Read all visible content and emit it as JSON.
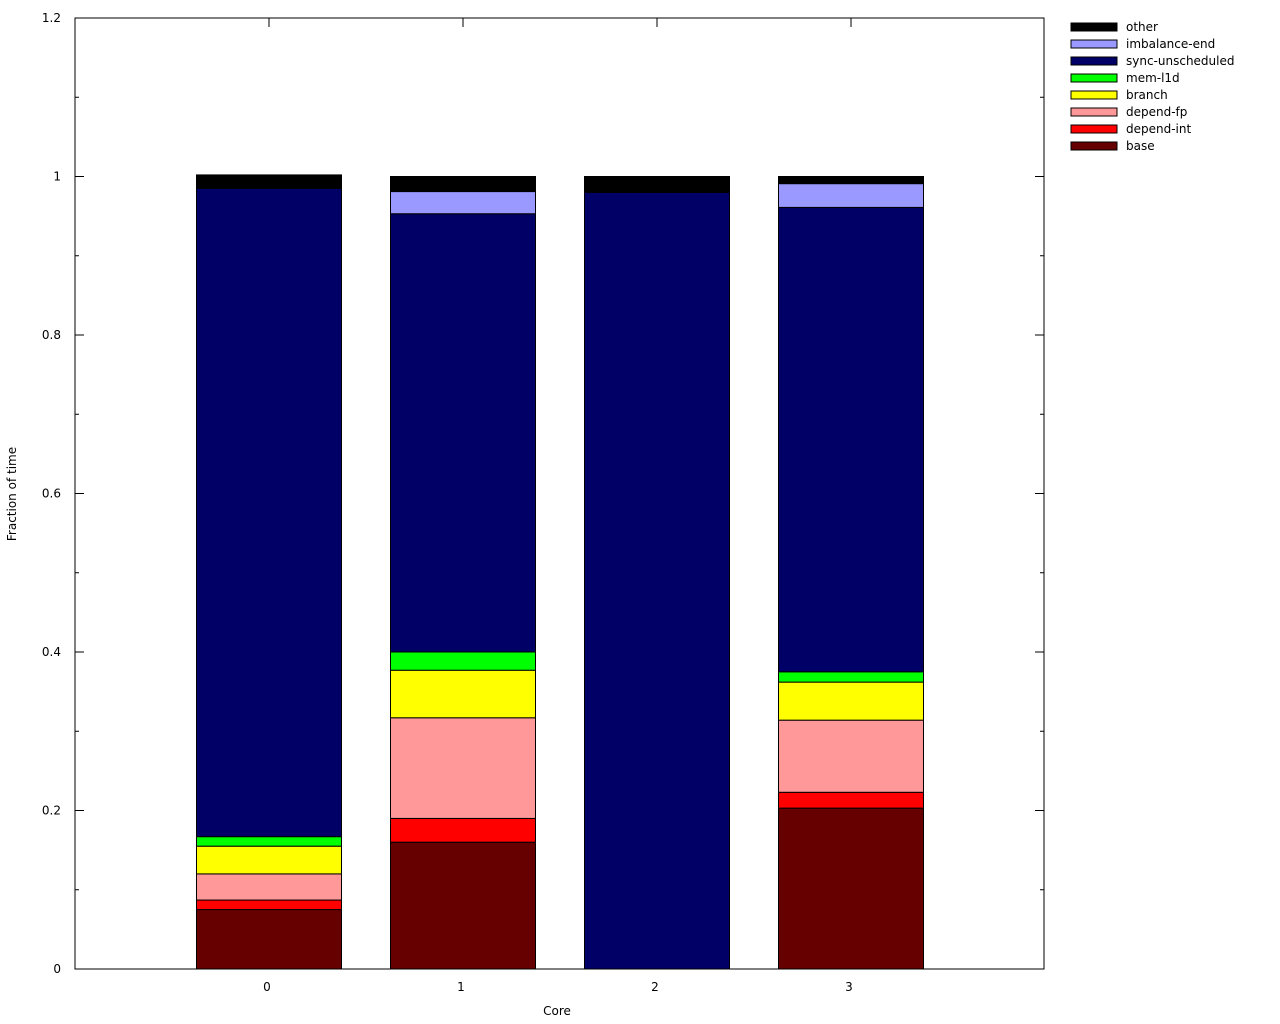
{
  "chart_data": {
    "type": "bar",
    "stacked": true,
    "title": "",
    "xlabel": "Core",
    "ylabel": "Fraction of time",
    "categories": [
      "0",
      "1",
      "2",
      "3"
    ],
    "ylim": [
      0,
      1.2
    ],
    "yticks": [
      "0",
      "0.2",
      "0.4",
      "0.6",
      "0.8",
      "1",
      "1.2"
    ],
    "ytick_values": [
      0,
      0.2,
      0.4,
      0.6,
      0.8,
      1.0,
      1.2
    ],
    "grid": false,
    "legend_position": "outside-top-right",
    "series": [
      {
        "name": "base",
        "color": "#660000",
        "values": [
          0.075,
          0.16,
          0.0,
          0.203
        ]
      },
      {
        "name": "depend-int",
        "color": "#ff0000",
        "values": [
          0.012,
          0.03,
          0.0,
          0.02
        ]
      },
      {
        "name": "depend-fp",
        "color": "#ff9999",
        "values": [
          0.033,
          0.127,
          0.0,
          0.091
        ]
      },
      {
        "name": "branch",
        "color": "#ffff00",
        "values": [
          0.035,
          0.06,
          0.0,
          0.048
        ]
      },
      {
        "name": "mem-l1d",
        "color": "#00ff00",
        "values": [
          0.012,
          0.023,
          0.0,
          0.013
        ]
      },
      {
        "name": "sync-unscheduled",
        "color": "#000066",
        "values": [
          0.818,
          0.553,
          0.98,
          0.586
        ]
      },
      {
        "name": "imbalance-end",
        "color": "#9999ff",
        "values": [
          0.0,
          0.028,
          0.0,
          0.03
        ]
      },
      {
        "name": "other",
        "color": "#000000",
        "values": [
          0.017,
          0.019,
          0.02,
          0.009
        ]
      }
    ]
  }
}
